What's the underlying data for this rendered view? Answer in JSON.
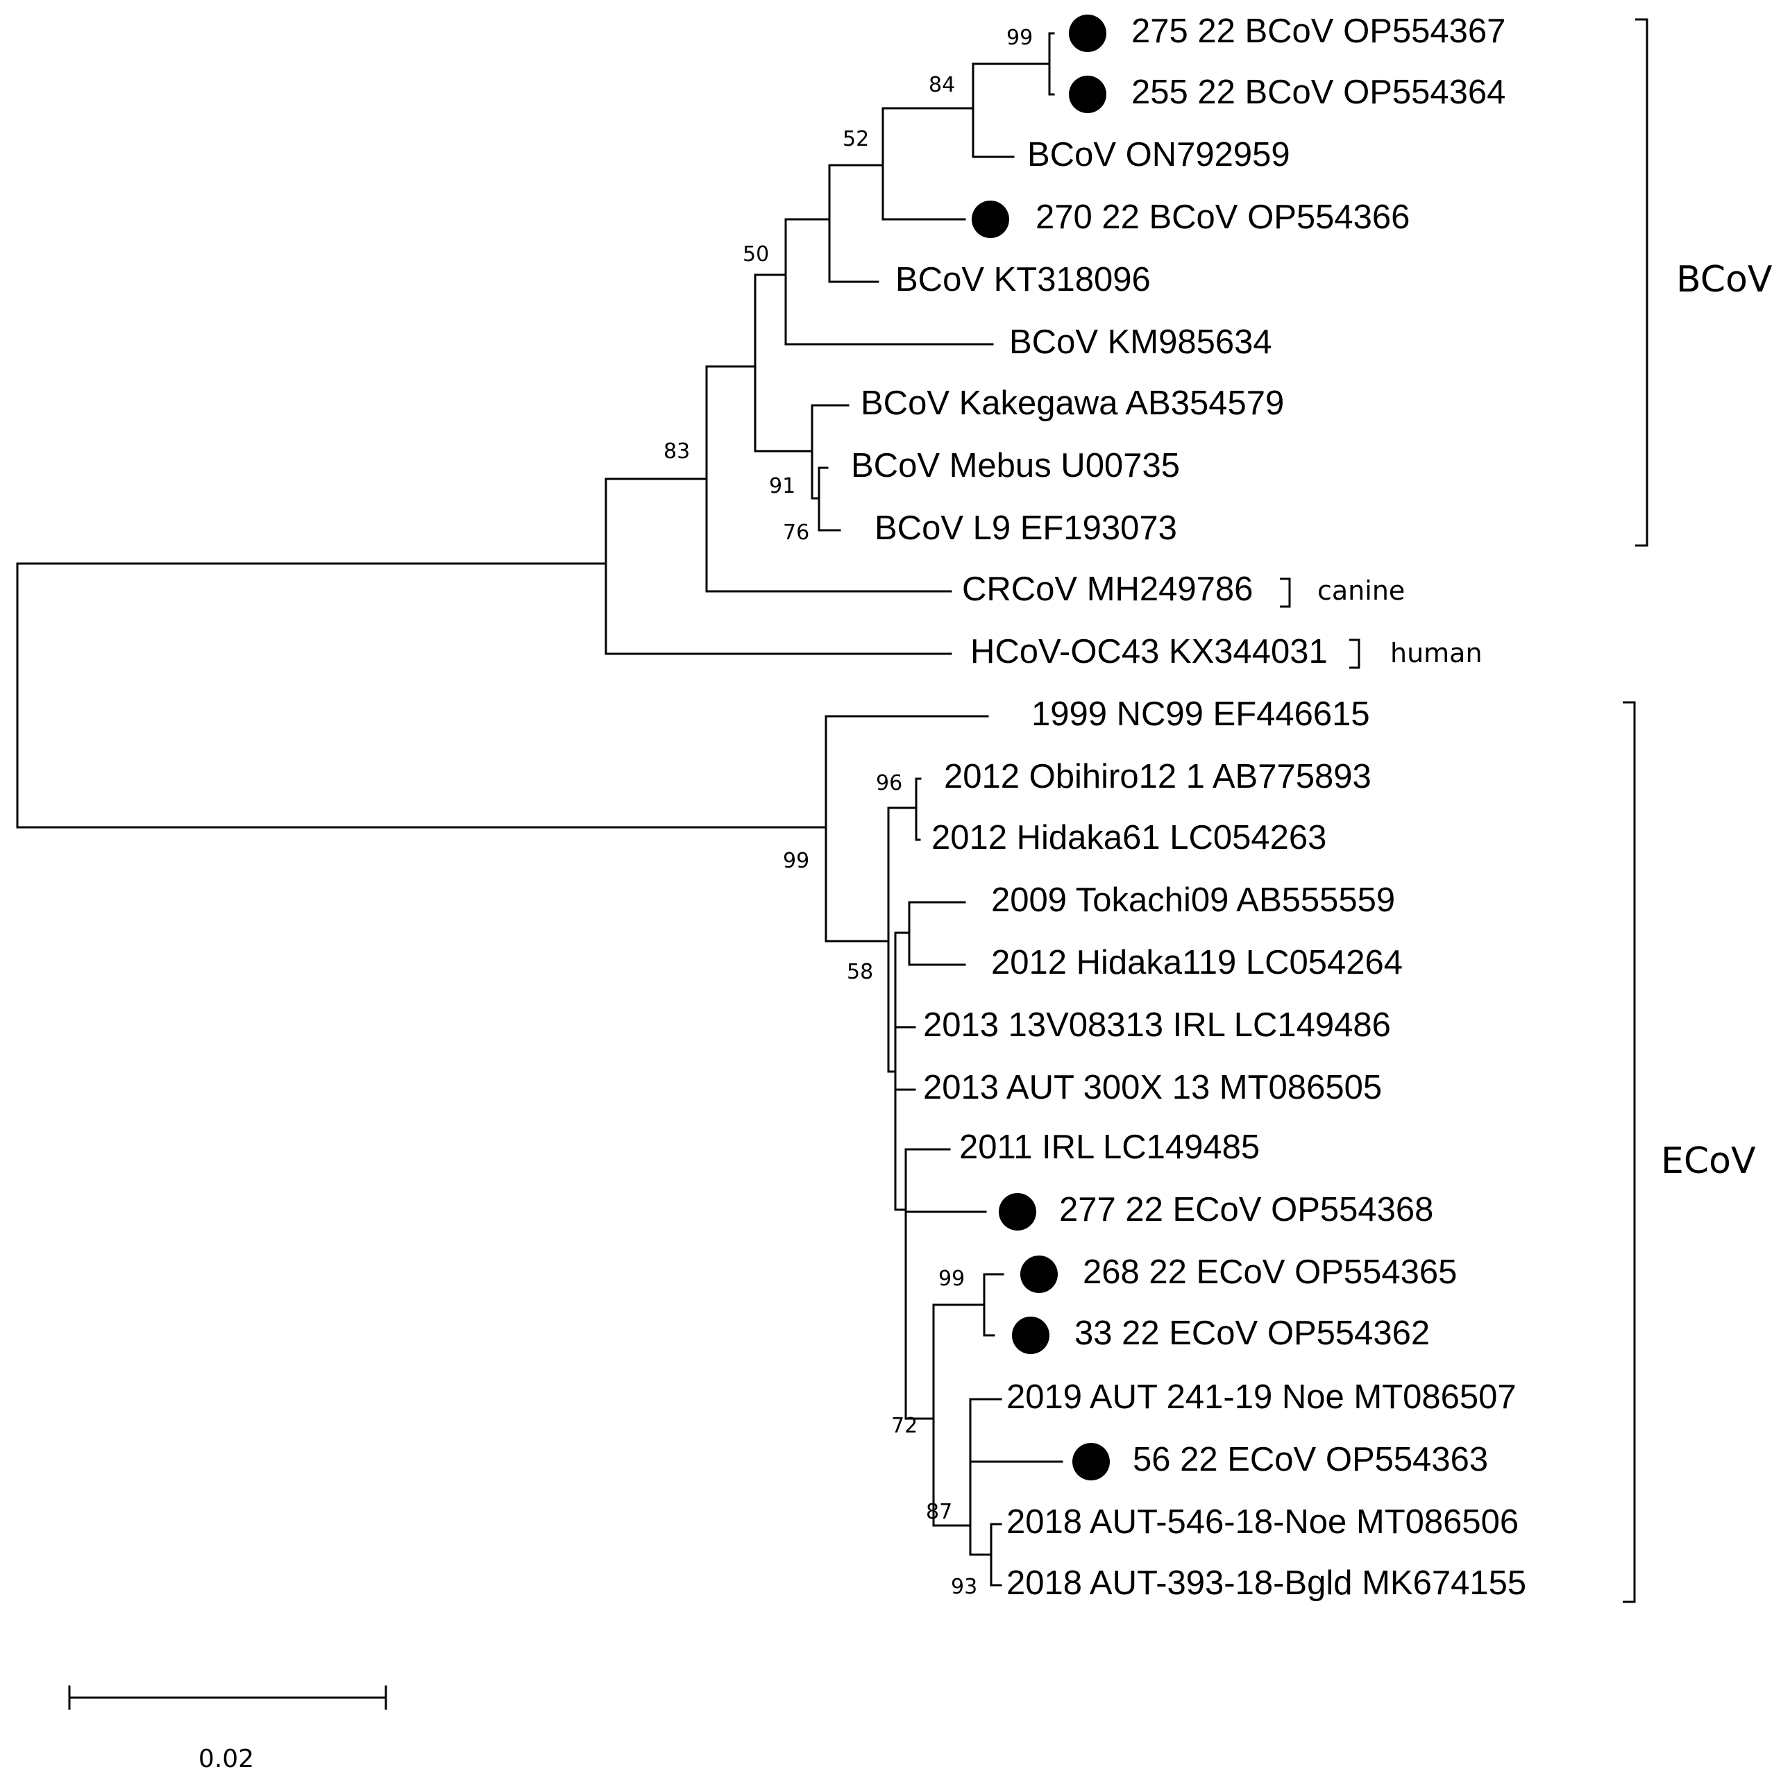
{
  "tree": {
    "taxa": [
      "275 22 BCoV OP554367",
      "255 22 BCoV OP554364",
      "BCoV ON792959",
      "270 22 BCoV OP554366",
      "BCoV KT318096",
      "BCoV KM985634",
      "BCoV Kakegawa AB354579",
      "BCoV Mebus U00735",
      "BCoV L9 EF193073",
      "CRCoV MH249786",
      "HCoV-OC43 KX344031",
      "1999 NC99 EF446615",
      "2012 Obihiro12 1 AB775893",
      "2012 Hidaka61 LC054263",
      "2009 Tokachi09 AB555559",
      "2012 Hidaka119 LC054264",
      "2013 13V08313 IRL LC149486",
      "2013 AUT 300X 13 MT086505",
      "2011 IRL LC149485",
      "277 22 ECoV OP554368",
      "268 22 ECoV OP554365",
      "33 22 ECoV OP554362",
      "2019 AUT 241-19 Noe MT086507",
      "56 22 ECoV OP554363",
      "2018 AUT-546-18-Noe MT086506",
      "2018 AUT-393-18-Bgld MK674155"
    ],
    "marked_taxa": [
      "275 22 BCoV OP554367",
      "255 22 BCoV OP554364",
      "270 22 BCoV OP554366",
      "277 22 ECoV OP554368",
      "268 22 ECoV OP554365",
      "33 22 ECoV OP554362",
      "56 22 ECoV OP554363"
    ],
    "bootstrap": [
      "99",
      "84",
      "52",
      "50",
      "83",
      "91",
      "76",
      "96",
      "99",
      "58",
      "99",
      "72",
      "87",
      "93"
    ],
    "groups": {
      "bcov": "BCoV",
      "canine": "canine",
      "human": "human",
      "ecov": "ECoV"
    },
    "scale_bar": "0.02"
  }
}
